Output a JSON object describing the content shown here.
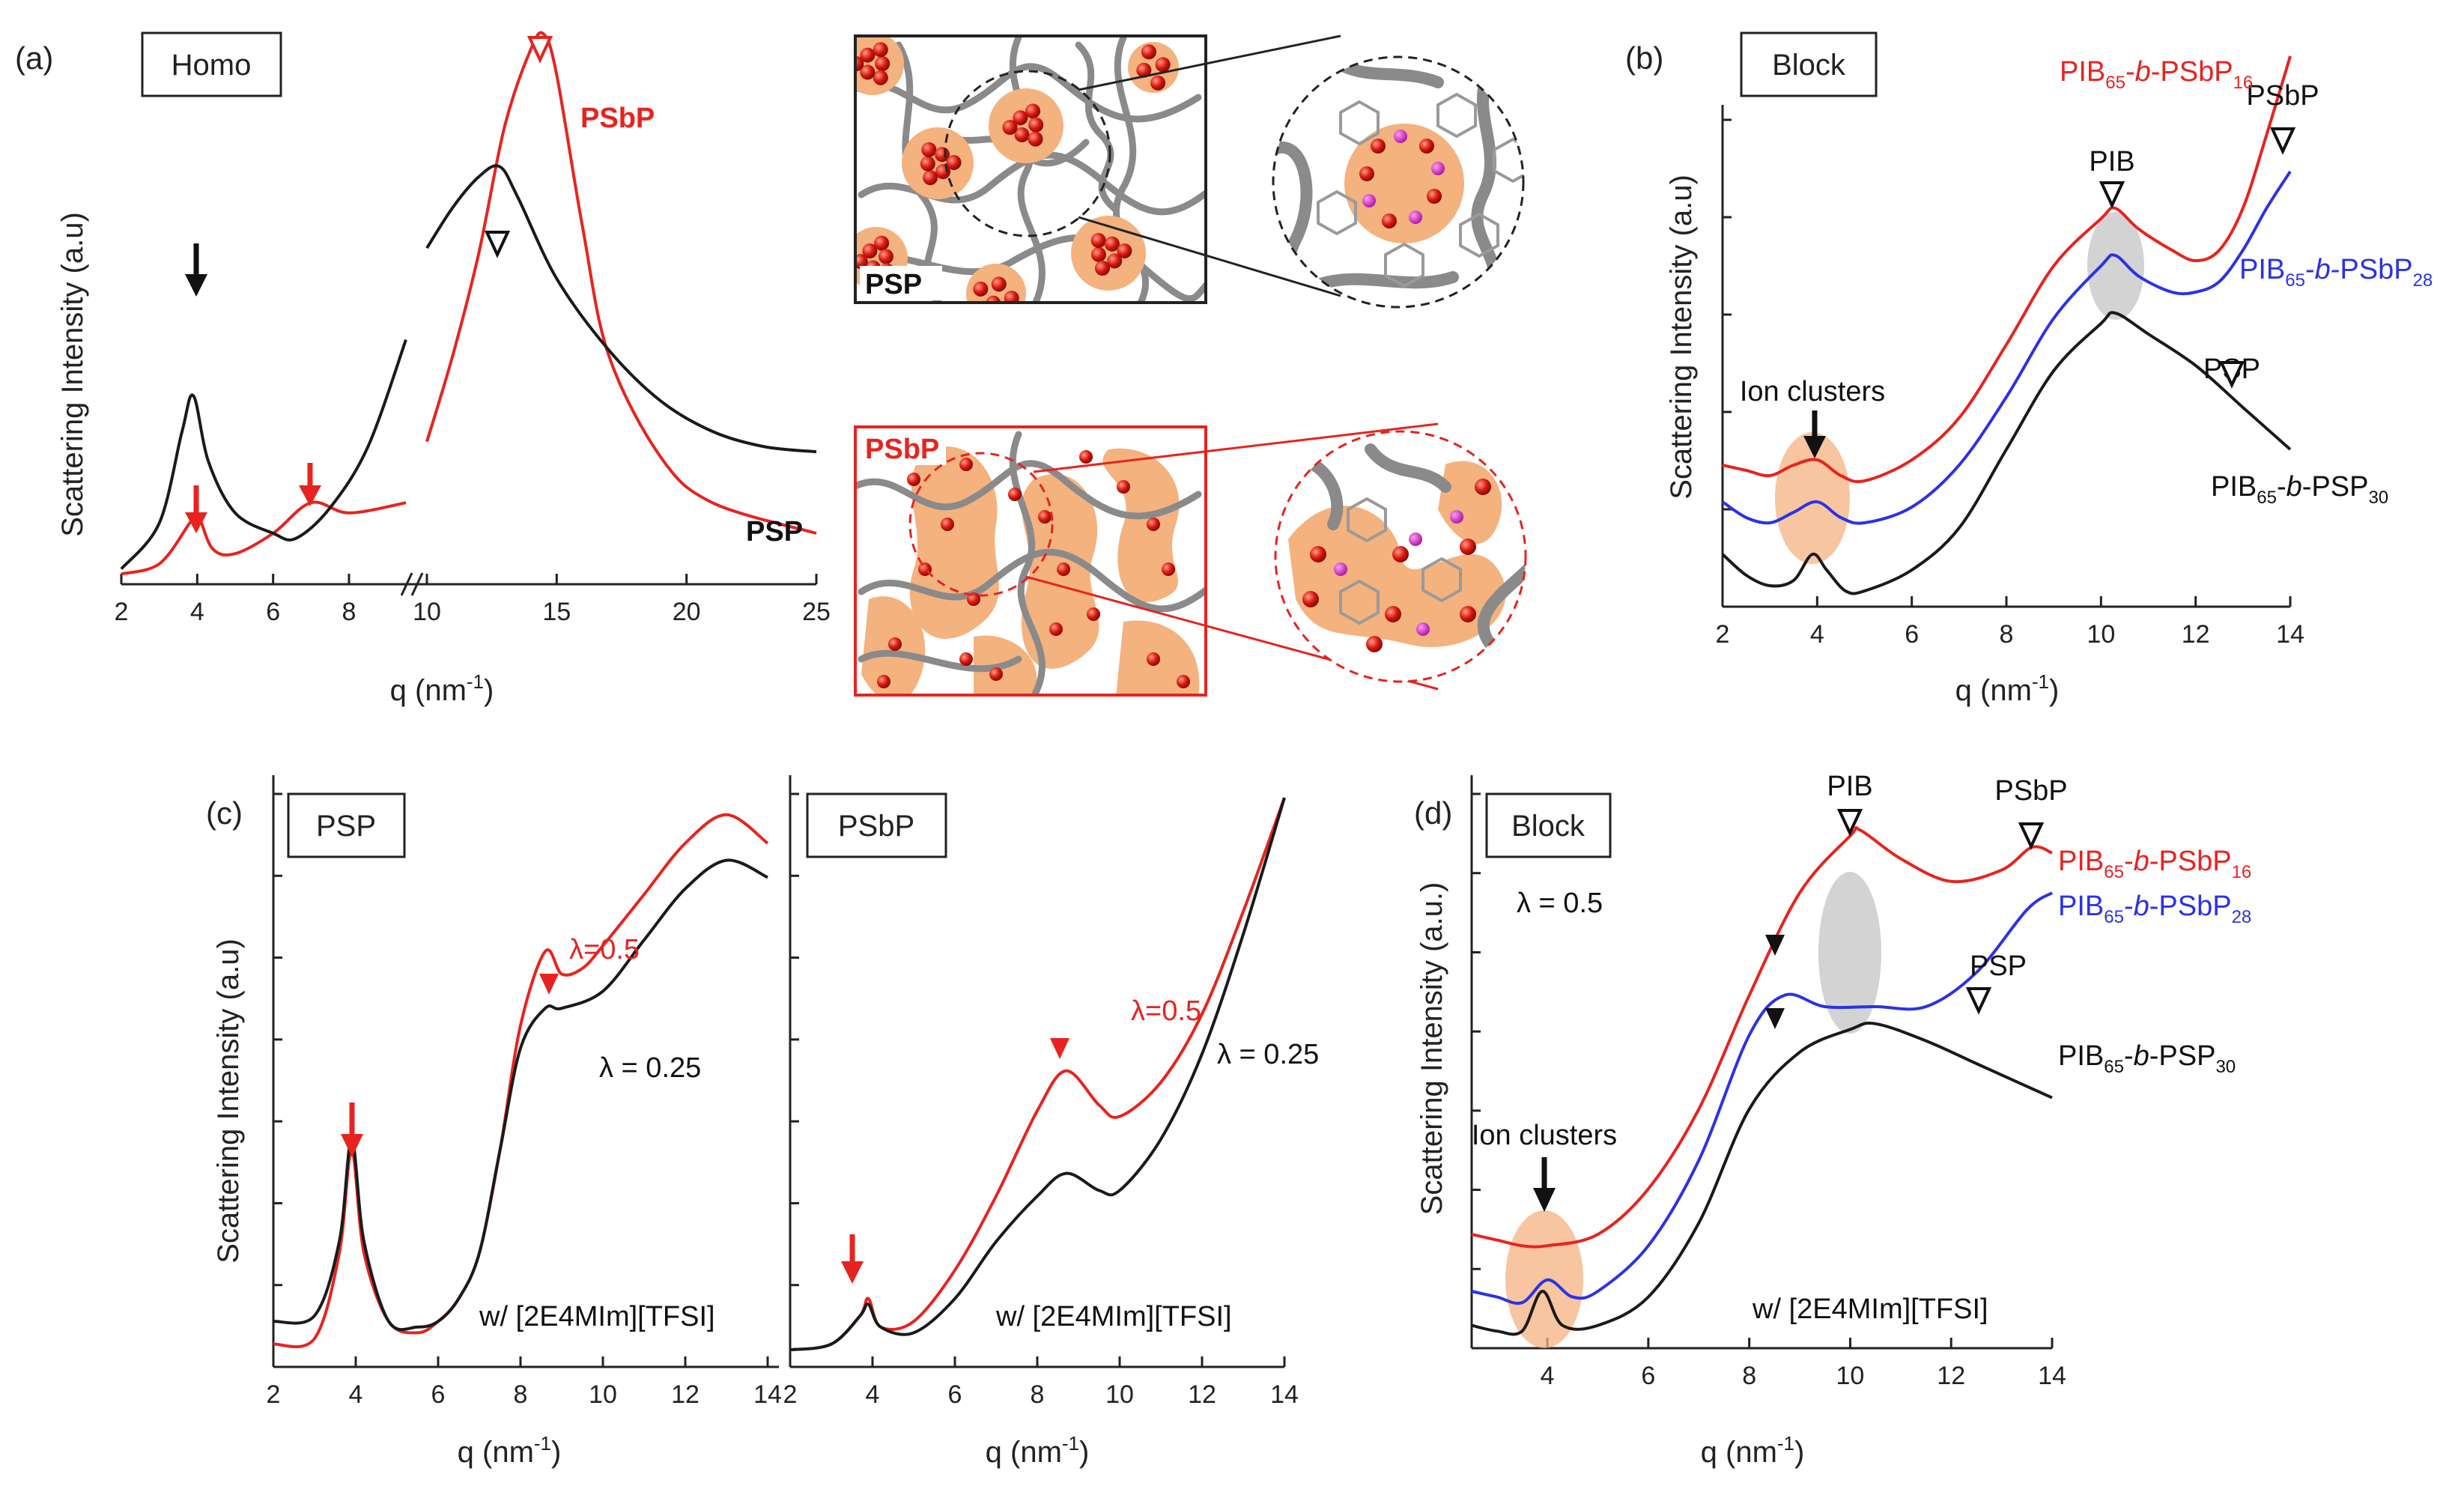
{
  "colors": {
    "red": "#e8231f",
    "blue": "#2a33e6",
    "black": "#1a1a1a",
    "orange": "#f4b27f",
    "gray": "#c8c8c8"
  },
  "chart_data": [
    {
      "panel": "(a)",
      "type": "line",
      "box_label": "Homo",
      "xlabel": "q (nm",
      "xlabel_sup": "-1",
      "xlabel_end": ")",
      "ylabel": "Scattering Intensity (a.u)",
      "ticks_left": [
        "2",
        "4",
        "6",
        "8"
      ],
      "ticks_right": [
        "10",
        "15",
        "20",
        "25"
      ],
      "break_tick": "10",
      "series": [
        {
          "name": "PSbP",
          "color": "red",
          "points_left": [
            [
              2,
              0.02
            ],
            [
              3,
              0.04
            ],
            [
              3.8,
              0.12
            ],
            [
              4,
              0.14
            ],
            [
              4.4,
              0.07
            ],
            [
              5,
              0.06
            ],
            [
              6,
              0.1
            ],
            [
              7,
              0.16
            ],
            [
              8,
              0.14
            ],
            [
              9.5,
              0.16
            ]
          ],
          "points_right": [
            [
              10,
              0.28
            ],
            [
              11,
              0.45
            ],
            [
              12,
              0.65
            ],
            [
              13,
              0.9
            ],
            [
              14,
              1.05
            ],
            [
              14.5,
              1.08
            ],
            [
              15,
              1.0
            ],
            [
              16,
              0.7
            ],
            [
              17,
              0.45
            ],
            [
              19,
              0.25
            ],
            [
              21,
              0.16
            ],
            [
              25,
              0.1
            ]
          ]
        },
        {
          "name": "PSP",
          "color": "black",
          "points_left": [
            [
              2,
              0.03
            ],
            [
              3,
              0.12
            ],
            [
              3.6,
              0.3
            ],
            [
              3.9,
              0.37
            ],
            [
              4.3,
              0.24
            ],
            [
              5,
              0.14
            ],
            [
              6,
              0.1
            ],
            [
              6.6,
              0.09
            ],
            [
              7.5,
              0.15
            ],
            [
              8.5,
              0.27
            ],
            [
              9.5,
              0.48
            ]
          ],
          "points_right": [
            [
              10,
              0.66
            ],
            [
              11,
              0.74
            ],
            [
              12,
              0.8
            ],
            [
              12.8,
              0.82
            ],
            [
              13.5,
              0.76
            ],
            [
              15,
              0.6
            ],
            [
              17,
              0.46
            ],
            [
              19,
              0.36
            ],
            [
              21,
              0.3
            ],
            [
              23,
              0.27
            ],
            [
              25,
              0.26
            ]
          ]
        }
      ],
      "annotations": [
        "PSbP",
        "PSP"
      ]
    },
    {
      "panel": "(b)",
      "type": "line",
      "box_label": "Block",
      "xlabel": "q (nm",
      "xlabel_sup": "-1",
      "xlabel_end": ")",
      "ylabel": "Scattering Intensity (a.u)",
      "x_ticks": [
        "2",
        "4",
        "6",
        "8",
        "10",
        "12",
        "14"
      ],
      "xlim": [
        2,
        14
      ],
      "series": [
        {
          "name": "PIB65-b-PSbP16",
          "color": "red",
          "points": [
            [
              2,
              0.27
            ],
            [
              2.5,
              0.26
            ],
            [
              3,
              0.25
            ],
            [
              3.5,
              0.27
            ],
            [
              4,
              0.28
            ],
            [
              4.5,
              0.25
            ],
            [
              5,
              0.24
            ],
            [
              6,
              0.28
            ],
            [
              7,
              0.36
            ],
            [
              8,
              0.5
            ],
            [
              9,
              0.65
            ],
            [
              10,
              0.74
            ],
            [
              10.3,
              0.76
            ],
            [
              10.8,
              0.72
            ],
            [
              11.5,
              0.68
            ],
            [
              12,
              0.66
            ],
            [
              12.5,
              0.68
            ],
            [
              13,
              0.76
            ],
            [
              13.5,
              0.9
            ],
            [
              14,
              1.05
            ]
          ]
        },
        {
          "name": "PIB65-b-PSbP28",
          "color": "blue",
          "points": [
            [
              2,
              0.2
            ],
            [
              2.5,
              0.17
            ],
            [
              3,
              0.16
            ],
            [
              3.5,
              0.18
            ],
            [
              4,
              0.2
            ],
            [
              4.5,
              0.17
            ],
            [
              5,
              0.16
            ],
            [
              6,
              0.19
            ],
            [
              7,
              0.27
            ],
            [
              8,
              0.4
            ],
            [
              9,
              0.55
            ],
            [
              10,
              0.65
            ],
            [
              10.3,
              0.67
            ],
            [
              10.8,
              0.63
            ],
            [
              11.5,
              0.6
            ],
            [
              12,
              0.6
            ],
            [
              12.5,
              0.62
            ],
            [
              13,
              0.68
            ],
            [
              13.5,
              0.76
            ],
            [
              14,
              0.83
            ]
          ]
        },
        {
          "name": "PIB65-b-PSP30",
          "color": "black",
          "points": [
            [
              2,
              0.1
            ],
            [
              2.5,
              0.06
            ],
            [
              3,
              0.04
            ],
            [
              3.5,
              0.05
            ],
            [
              3.9,
              0.1
            ],
            [
              4.2,
              0.07
            ],
            [
              4.6,
              0.03
            ],
            [
              5,
              0.03
            ],
            [
              6,
              0.07
            ],
            [
              7,
              0.15
            ],
            [
              8,
              0.3
            ],
            [
              9,
              0.45
            ],
            [
              10,
              0.54
            ],
            [
              10.3,
              0.56
            ],
            [
              11,
              0.52
            ],
            [
              12,
              0.46
            ],
            [
              13,
              0.38
            ],
            [
              14,
              0.3
            ]
          ]
        }
      ],
      "annotations": {
        "ion_clusters": "Ion clusters",
        "pib": "PIB",
        "psbp": "PSbP",
        "psp": "PSP"
      }
    },
    {
      "panel": "(c)",
      "type": "line",
      "box_label": "PSP",
      "xlabel": "q (nm",
      "xlabel_sup": "-1",
      "xlabel_end": ")",
      "ylabel": "Scattering Intensity (a.u)",
      "x_ticks": [
        "2",
        "4",
        "6",
        "8",
        "10",
        "12",
        "14"
      ],
      "xlim": [
        2,
        14
      ],
      "series": [
        {
          "name": "λ=0.5",
          "color": "red",
          "points": [
            [
              2,
              0.04
            ],
            [
              3,
              0.05
            ],
            [
              3.6,
              0.2
            ],
            [
              3.9,
              0.38
            ],
            [
              4.2,
              0.2
            ],
            [
              4.8,
              0.08
            ],
            [
              5.5,
              0.06
            ],
            [
              6,
              0.08
            ],
            [
              6.5,
              0.12
            ],
            [
              7,
              0.2
            ],
            [
              7.5,
              0.38
            ],
            [
              8,
              0.6
            ],
            [
              8.6,
              0.73
            ],
            [
              9,
              0.69
            ],
            [
              9.5,
              0.7
            ],
            [
              10,
              0.74
            ],
            [
              11,
              0.83
            ],
            [
              12,
              0.92
            ],
            [
              13,
              0.97
            ],
            [
              14,
              0.92
            ]
          ]
        },
        {
          "name": "λ = 0.25",
          "color": "black",
          "points": [
            [
              2,
              0.08
            ],
            [
              3,
              0.09
            ],
            [
              3.6,
              0.22
            ],
            [
              3.9,
              0.4
            ],
            [
              4.2,
              0.22
            ],
            [
              4.8,
              0.08
            ],
            [
              5.5,
              0.07
            ],
            [
              6,
              0.08
            ],
            [
              6.5,
              0.12
            ],
            [
              7,
              0.2
            ],
            [
              7.5,
              0.38
            ],
            [
              8,
              0.56
            ],
            [
              8.6,
              0.63
            ],
            [
              9,
              0.63
            ],
            [
              10,
              0.66
            ],
            [
              11,
              0.75
            ],
            [
              12,
              0.84
            ],
            [
              13,
              0.89
            ],
            [
              14,
              0.86
            ]
          ]
        }
      ],
      "note": "w/ [2E4MIm][TFSI]"
    },
    {
      "panel": "(c2)",
      "type": "line",
      "box_label": "PSbP",
      "xlabel": "q (nm",
      "xlabel_sup": "-1",
      "xlabel_end": ")",
      "x_ticks": [
        "2",
        "4",
        "6",
        "8",
        "10",
        "12",
        "14"
      ],
      "xlim": [
        2,
        14
      ],
      "series": [
        {
          "name": "λ=0.5",
          "color": "red",
          "points": [
            [
              2,
              0.03
            ],
            [
              3,
              0.04
            ],
            [
              3.7,
              0.09
            ],
            [
              3.9,
              0.12
            ],
            [
              4.2,
              0.07
            ],
            [
              5,
              0.08
            ],
            [
              6,
              0.17
            ],
            [
              7,
              0.3
            ],
            [
              8,
              0.45
            ],
            [
              8.7,
              0.52
            ],
            [
              9.5,
              0.46
            ],
            [
              10,
              0.44
            ],
            [
              11,
              0.5
            ],
            [
              12,
              0.62
            ],
            [
              13,
              0.8
            ],
            [
              14,
              1.0
            ]
          ]
        },
        {
          "name": "λ = 0.25",
          "color": "black",
          "points": [
            [
              2,
              0.03
            ],
            [
              3,
              0.04
            ],
            [
              3.7,
              0.09
            ],
            [
              3.9,
              0.11
            ],
            [
              4.2,
              0.07
            ],
            [
              5,
              0.06
            ],
            [
              6,
              0.12
            ],
            [
              7,
              0.22
            ],
            [
              8,
              0.3
            ],
            [
              8.7,
              0.34
            ],
            [
              9.5,
              0.31
            ],
            [
              10,
              0.31
            ],
            [
              11,
              0.4
            ],
            [
              12,
              0.55
            ],
            [
              13,
              0.76
            ],
            [
              14,
              1.0
            ]
          ]
        }
      ],
      "labels": {
        "red": "λ=0.5",
        "black": "λ = 0.25"
      },
      "note": "w/ [2E4MIm][TFSI]"
    },
    {
      "panel": "(d)",
      "type": "line",
      "box_label": "Block",
      "lambda": "λ = 0.5",
      "xlabel": "q (nm",
      "xlabel_sup": "-1",
      "xlabel_end": ")",
      "ylabel": "Scattering Intensity (a.u.)",
      "x_ticks": [
        "4",
        "6",
        "8",
        "10",
        "12",
        "14"
      ],
      "xlim": [
        2.5,
        14
      ],
      "series": [
        {
          "name": "PIB65-b-PSbP16",
          "color": "red",
          "points": [
            [
              2.5,
              0.2
            ],
            [
              3,
              0.19
            ],
            [
              3.5,
              0.18
            ],
            [
              4,
              0.18
            ],
            [
              5,
              0.2
            ],
            [
              6,
              0.28
            ],
            [
              7,
              0.42
            ],
            [
              8,
              0.62
            ],
            [
              9,
              0.8
            ],
            [
              10,
              0.9
            ],
            [
              10.2,
              0.91
            ],
            [
              11,
              0.86
            ],
            [
              12,
              0.82
            ],
            [
              13,
              0.84
            ],
            [
              13.6,
              0.88
            ],
            [
              14,
              0.87
            ]
          ]
        },
        {
          "name": "PIB65-b-PSbP28",
          "color": "blue",
          "points": [
            [
              2.5,
              0.1
            ],
            [
              3,
              0.09
            ],
            [
              3.5,
              0.08
            ],
            [
              4,
              0.12
            ],
            [
              4.5,
              0.09
            ],
            [
              5,
              0.1
            ],
            [
              6,
              0.18
            ],
            [
              7,
              0.33
            ],
            [
              8,
              0.55
            ],
            [
              8.7,
              0.62
            ],
            [
              9.5,
              0.6
            ],
            [
              10.5,
              0.6
            ],
            [
              11.5,
              0.6
            ],
            [
              12.5,
              0.66
            ],
            [
              13.5,
              0.77
            ],
            [
              14,
              0.8
            ]
          ]
        },
        {
          "name": "PIB65-b-PSP30",
          "color": "black",
          "points": [
            [
              2.5,
              0.04
            ],
            [
              3,
              0.03
            ],
            [
              3.5,
              0.03
            ],
            [
              3.9,
              0.1
            ],
            [
              4.3,
              0.04
            ],
            [
              5,
              0.04
            ],
            [
              6,
              0.09
            ],
            [
              7,
              0.22
            ],
            [
              8,
              0.42
            ],
            [
              9,
              0.52
            ],
            [
              10,
              0.56
            ],
            [
              10.5,
              0.57
            ],
            [
              11.5,
              0.54
            ],
            [
              12.5,
              0.5
            ],
            [
              13.5,
              0.46
            ],
            [
              14,
              0.44
            ]
          ]
        }
      ],
      "annotations": {
        "ion_clusters": "Ion clusters",
        "pib": "PIB",
        "psbp": "PSbP",
        "psp": "PSP"
      },
      "note": "w/ [2E4MIm][TFSI]"
    }
  ],
  "legend_labels": {
    "psbp16": {
      "base": "PIB",
      "sub1": "65",
      "mid": "-",
      "it": "b",
      "end": "-PSbP",
      "sub2": "16"
    },
    "psbp28": {
      "base": "PIB",
      "sub1": "65",
      "mid": "-",
      "it": "b",
      "end": "-PSbP",
      "sub2": "28"
    },
    "psp30": {
      "base": "PIB",
      "sub1": "65",
      "mid": "-",
      "it": "b",
      "end": "-PSP",
      "sub2": "30"
    }
  },
  "schematic": {
    "top_label": "PSP",
    "bottom_label": "PSbP"
  },
  "panel_labels": {
    "a": "(a)",
    "b": "(b)",
    "c": "(c)",
    "d": "(d)"
  }
}
